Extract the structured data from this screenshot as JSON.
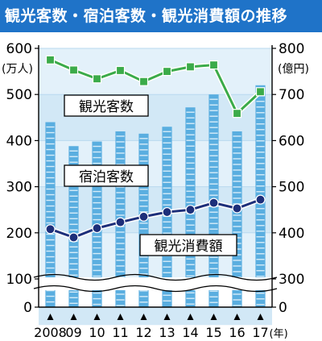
{
  "title": "観光客数・宿泊客数・観光消費額の推移",
  "colors": {
    "header": "#1f73c8",
    "bars": "#5aaee0",
    "bars_highlight": "#b6dcf2",
    "plot_bg": "#d9ecf8",
    "green_line": "#3bab49",
    "navy_line": "#1d2f7a",
    "axis": "#000000"
  },
  "chart_data": {
    "type": "bar+line",
    "categories": [
      "2008",
      "09",
      "10",
      "11",
      "12",
      "13",
      "14",
      "15",
      "16",
      "17"
    ],
    "x_unit": "(年)",
    "left_axis": {
      "unit": "(万人)",
      "ticks": [
        "0",
        "100",
        "200",
        "300",
        "400",
        "500",
        "600"
      ],
      "ylim": [
        0,
        600
      ],
      "break": true
    },
    "right_axis": {
      "unit": "(億円)",
      "ticks": [
        "0",
        "300",
        "400",
        "500",
        "600",
        "700",
        "800"
      ],
      "ylim": [
        0,
        800
      ],
      "break": true
    },
    "series": [
      {
        "name": "観光消費額",
        "kind": "bar",
        "axis": "right",
        "values": [
          640,
          588,
          598,
          620,
          615,
          630,
          672,
          700,
          620,
          720
        ]
      },
      {
        "name": "観光客数",
        "kind": "line",
        "axis": "left",
        "marker": "square",
        "values": [
          575,
          553,
          534,
          552,
          528,
          550,
          560,
          564,
          459,
          506
        ]
      },
      {
        "name": "宿泊客数",
        "kind": "line",
        "axis": "left",
        "marker": "circle",
        "values": [
          208,
          190,
          210,
          223,
          235,
          245,
          250,
          265,
          253,
          272
        ]
      }
    ]
  }
}
